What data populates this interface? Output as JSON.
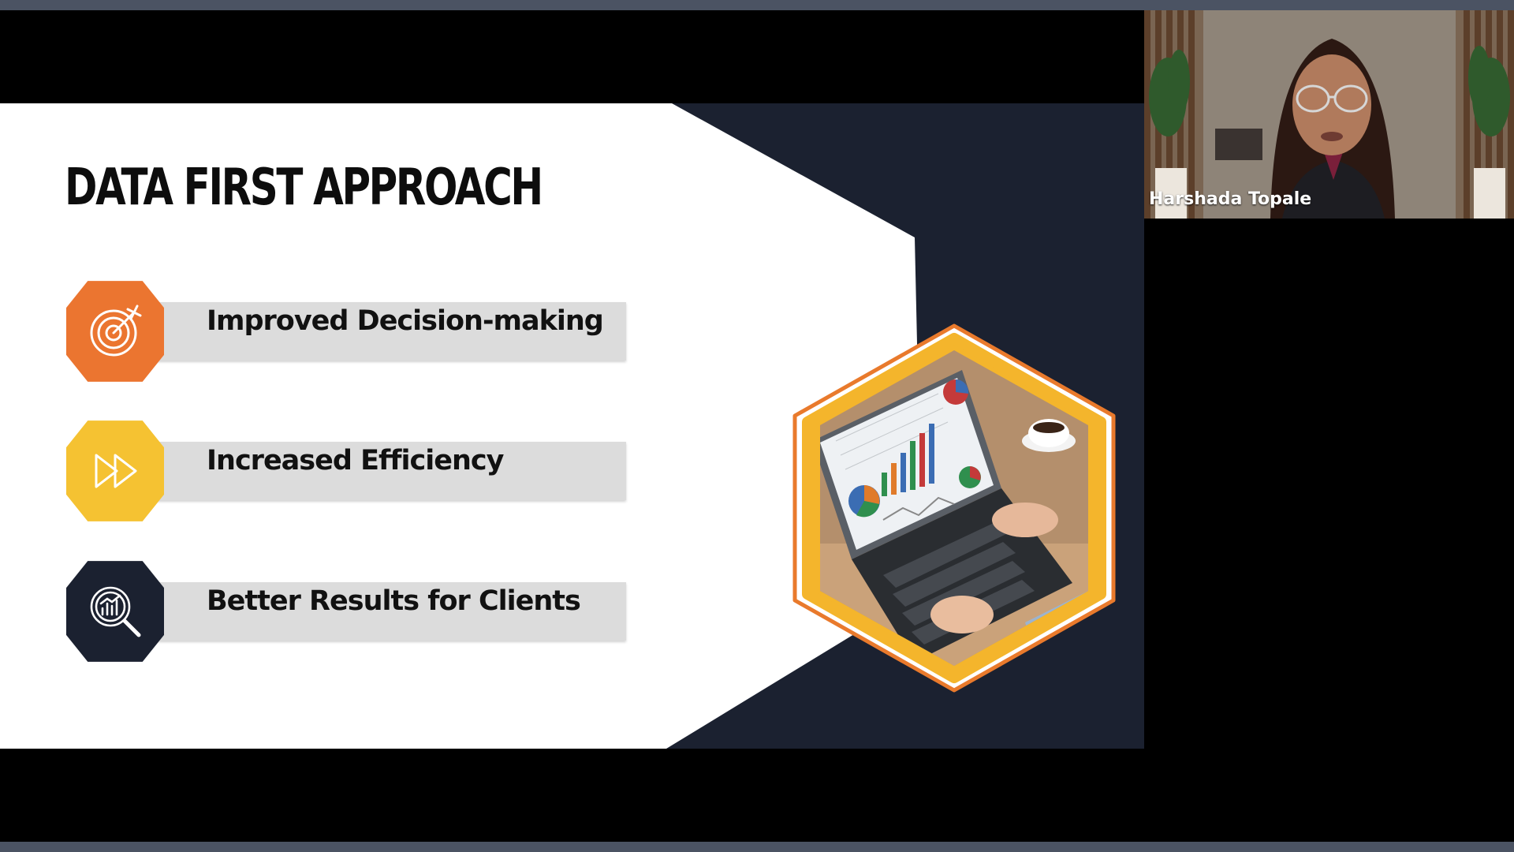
{
  "meeting": {
    "presentation": {
      "title": "DATA FIRST APPROACH",
      "points": [
        {
          "label": "Improved Decision-making",
          "icon": "target-icon",
          "color": "#eb7530"
        },
        {
          "label": "Increased Efficiency",
          "icon": "fast-forward-icon",
          "color": "#f5c232"
        },
        {
          "label": "Better Results for Clients",
          "icon": "analytics-magnifier-icon",
          "color": "#1b2130"
        }
      ],
      "image": "laptop-analytics-dashboard",
      "colors": {
        "accent_orange": "#eb7530",
        "accent_yellow": "#f5c232",
        "navy": "#1b2130"
      }
    },
    "participant": {
      "name": "Harshada Topale"
    }
  }
}
